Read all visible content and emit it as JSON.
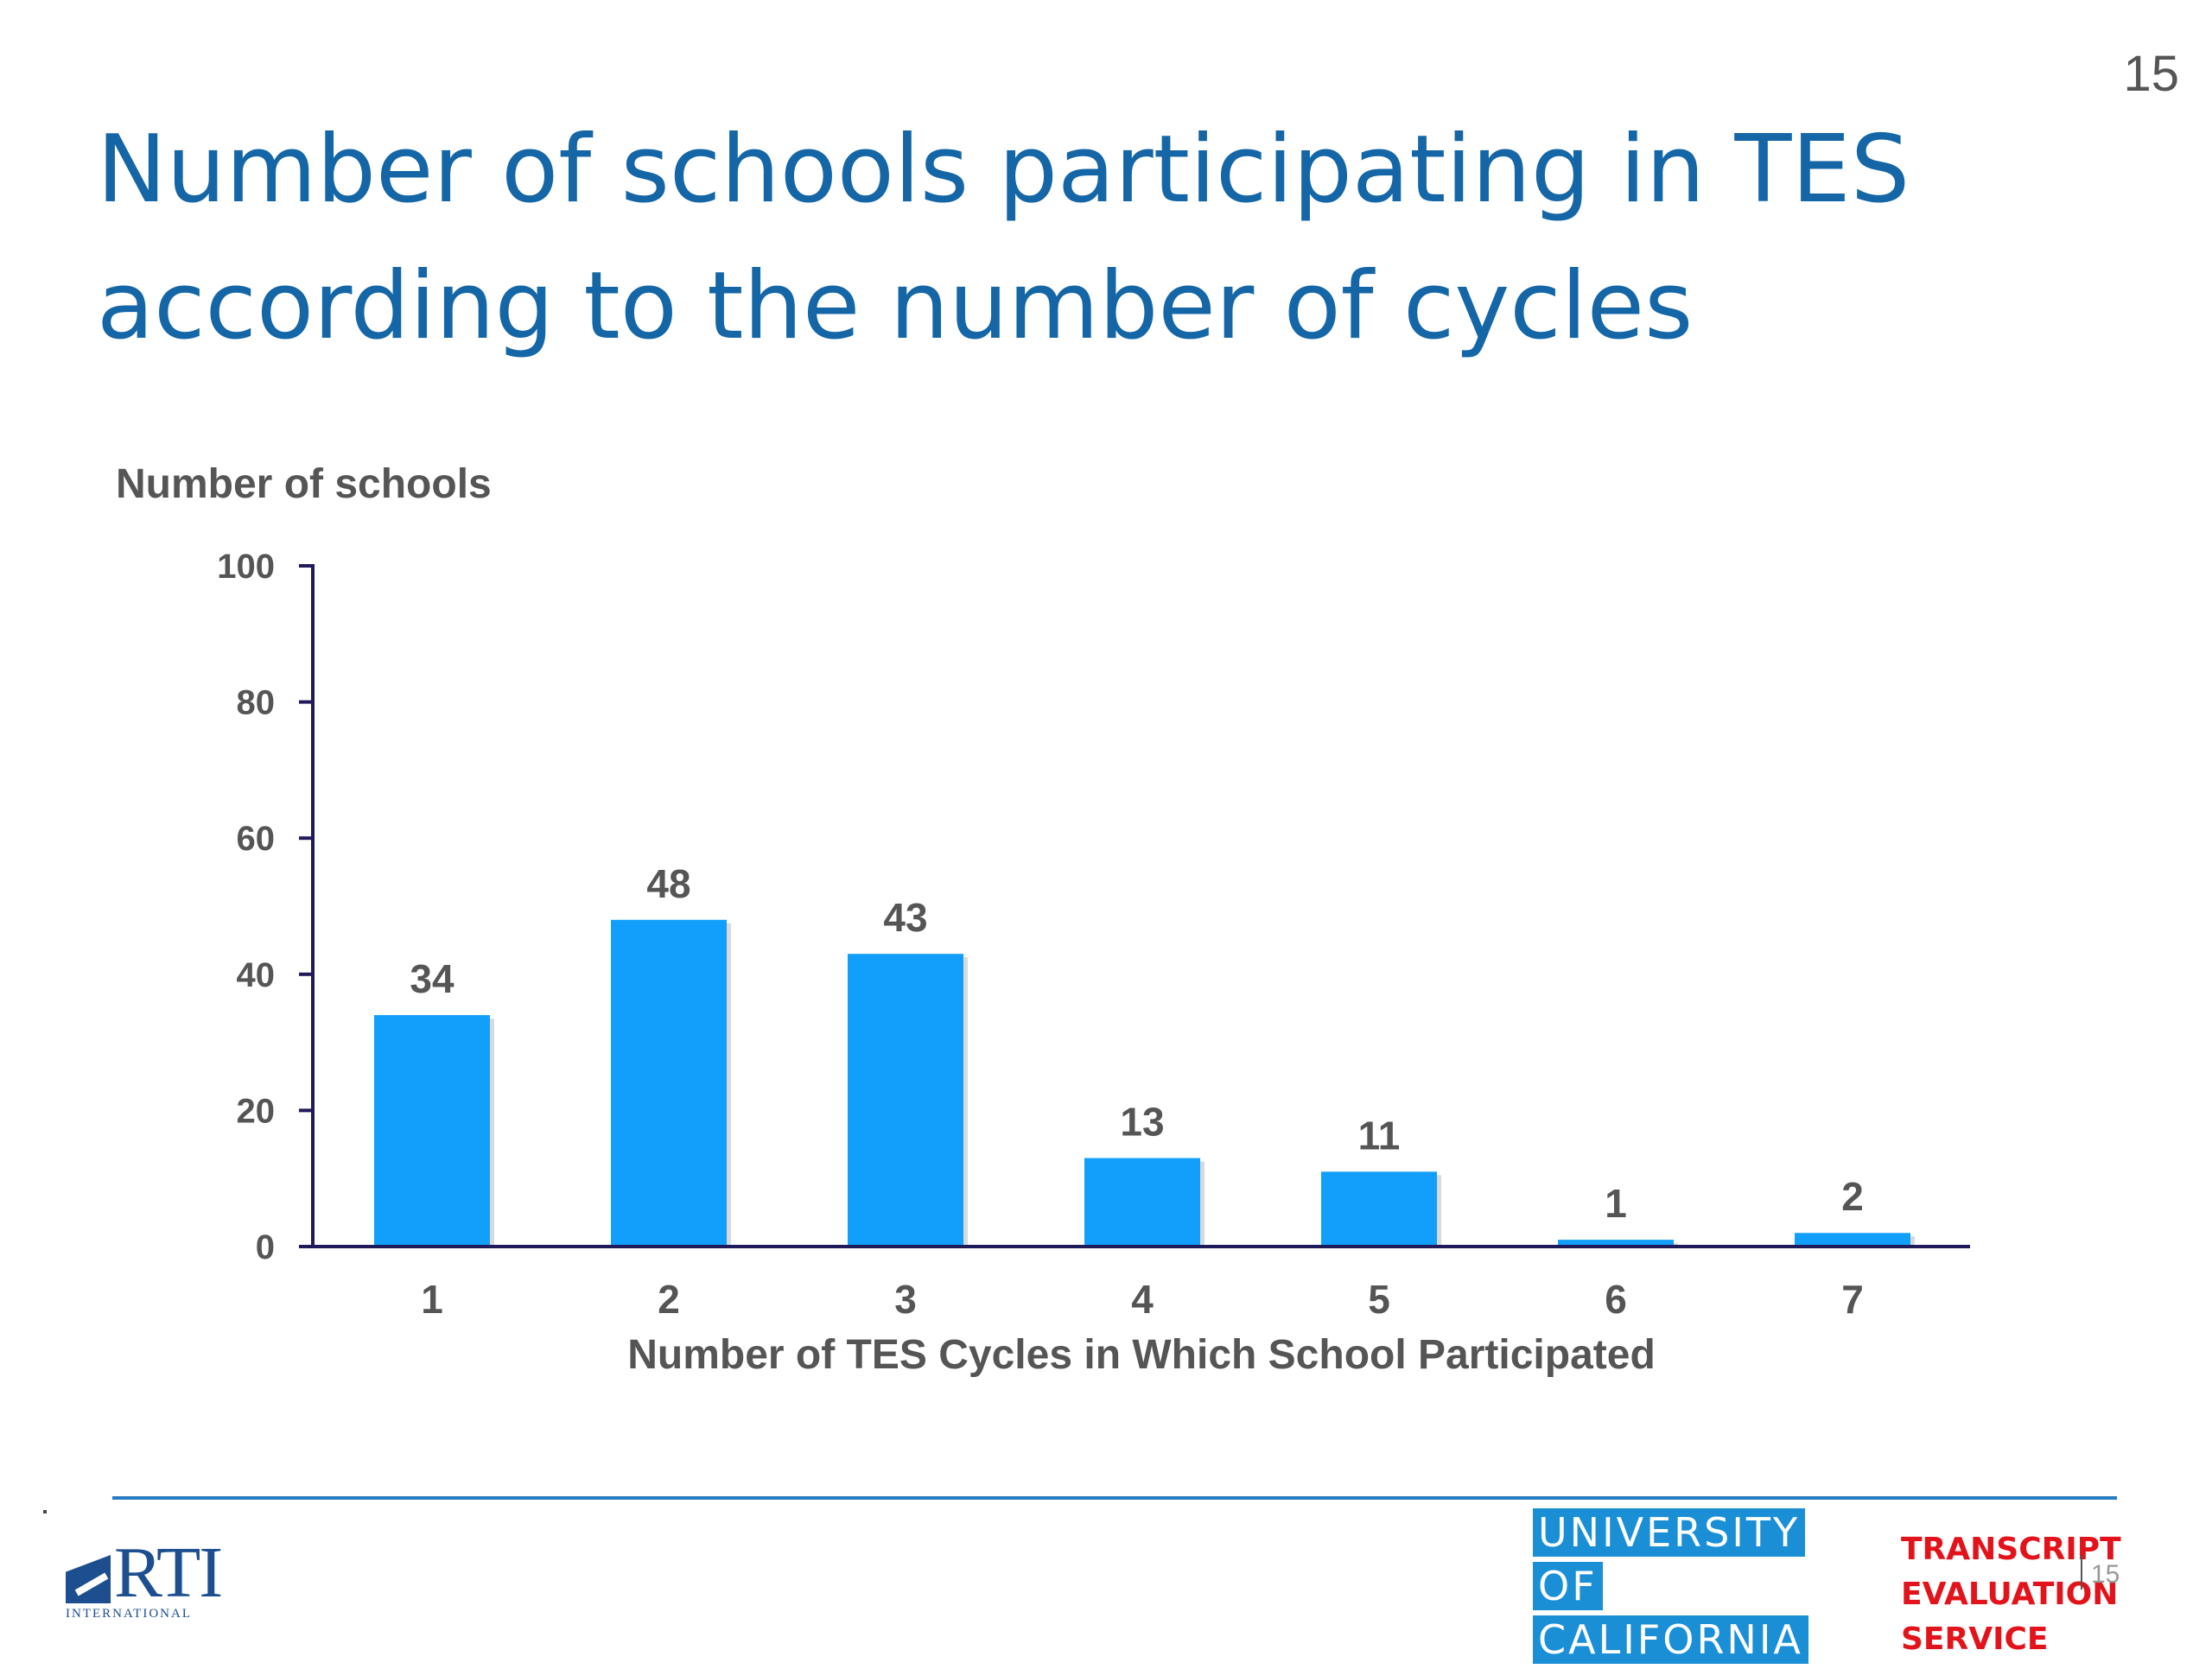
{
  "slide": {
    "page_number": "15",
    "title_line1": "Number of schools participating in TES",
    "title_line2": "according to the number of cycles"
  },
  "chart_data": {
    "type": "bar",
    "title": "",
    "ylabel": "Number of schools",
    "xlabel": "Number of TES Cycles in Which School Participated",
    "categories": [
      "1",
      "2",
      "3",
      "4",
      "5",
      "6",
      "7"
    ],
    "values": [
      34,
      48,
      43,
      13,
      11,
      1,
      2
    ],
    "data_labels": [
      "34",
      "48",
      "43",
      "13",
      "11",
      "1",
      "2"
    ],
    "ylim": [
      0,
      100
    ],
    "yticks": [
      0,
      20,
      40,
      60,
      80,
      100
    ],
    "bar_color": "#129ffc",
    "axis_color": "#1f1a5a",
    "grid": false,
    "legend": "none"
  },
  "footer": {
    "rti_logo_text": "RTI",
    "rti_logo_subtext": "INTERNATIONAL",
    "uc_logo_lines": [
      "UNIVERSITY",
      "OF",
      "CALIFORNIA"
    ],
    "tes_logo_lines": [
      "TRANSCRIPT",
      "EVALUATION",
      "SERVICE"
    ],
    "small_page_number": "15"
  },
  "colors": {
    "title": "#1566a6",
    "footer_rule": "#2a7cc2",
    "uc_blue": "#1a8fd6",
    "tes_red": "#e3131b",
    "rti_blue": "#1d4e8f"
  }
}
